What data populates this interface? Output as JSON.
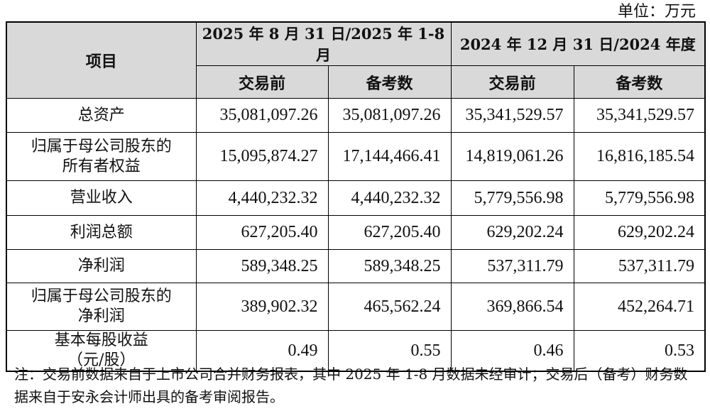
{
  "unit_label": "单位：万元",
  "header": {
    "item_col": "项目",
    "period_1": "2025 年 8 月 31 日/2025 年 1-8 月",
    "period_2": "2024 年 12 月 31 日/2024 年度",
    "sub_cols": [
      "交易前",
      "备考数",
      "交易前",
      "备考数"
    ]
  },
  "rows": [
    {
      "label_lines": [
        "总资产"
      ],
      "values": [
        "35,081,097.26",
        "35,081,097.26",
        "35,341,529.57",
        "35,341,529.57"
      ]
    },
    {
      "label_lines": [
        "归属于母公司股东的",
        "所有者权益"
      ],
      "values": [
        "15,095,874.27",
        "17,144,466.41",
        "14,819,061.26",
        "16,816,185.54"
      ]
    },
    {
      "label_lines": [
        "营业收入"
      ],
      "values": [
        "4,440,232.32",
        "4,440,232.32",
        "5,779,556.98",
        "5,779,556.98"
      ]
    },
    {
      "label_lines": [
        "利润总额"
      ],
      "values": [
        "627,205.40",
        "627,205.40",
        "629,202.24",
        "629,202.24"
      ]
    },
    {
      "label_lines": [
        "净利润"
      ],
      "values": [
        "589,348.25",
        "589,348.25",
        "537,311.79",
        "537,311.79"
      ]
    },
    {
      "label_lines": [
        "归属于母公司股东的",
        "净利润"
      ],
      "values": [
        "389,902.32",
        "465,562.24",
        "369,866.54",
        "452,264.71"
      ]
    },
    {
      "label_lines": [
        "基本每股收益",
        "（元/股）"
      ],
      "values": [
        "0.49",
        "0.55",
        "0.46",
        "0.53"
      ]
    }
  ],
  "note": "注：交易前数据来自于上市公司合并财务报表，其中 2025 年 1-8 月数据未经审计；交易后（备考）财务数据来自于安永会计师出具的备考审阅报告。"
}
